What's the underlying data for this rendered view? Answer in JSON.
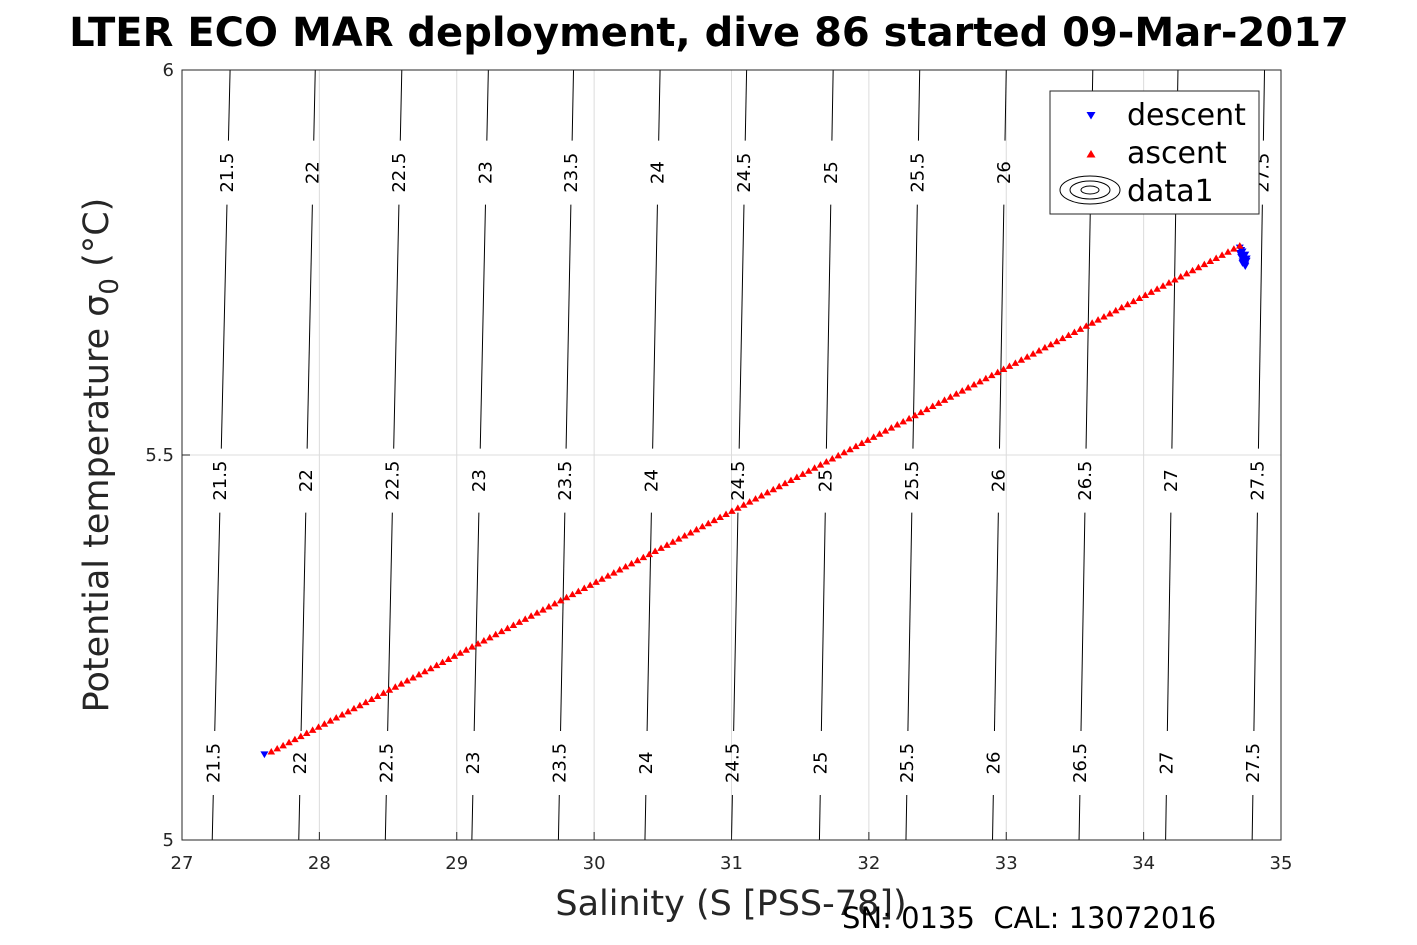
{
  "chart_data": {
    "type": "scatter",
    "title": "LTER ECO MAR deployment, dive 86 started 09-Mar-2017",
    "xlabel": "Salinity (S [PSS-78])",
    "ylabel": "Potential temperature σ",
    "ylabel_subscript": "0",
    "ylabel_unit": " (°C)",
    "xlim": [
      27,
      35
    ],
    "ylim": [
      5,
      6
    ],
    "xticks": [
      27,
      28,
      29,
      30,
      31,
      32,
      33,
      34,
      35
    ],
    "yticks": [
      5,
      5.5,
      6
    ],
    "xtick_labels": [
      "27",
      "28",
      "29",
      "30",
      "31",
      "32",
      "33",
      "34",
      "35"
    ],
    "ytick_labels": [
      "5",
      "5.5",
      "6"
    ],
    "grid": true,
    "legend_position": "top-right",
    "legend": [
      "descent",
      "ascent",
      "data1"
    ],
    "contours": {
      "levels": [
        21.5,
        22,
        22.5,
        23,
        23.5,
        24,
        24.5,
        25,
        25.5,
        26,
        26.5,
        27,
        27.5
      ],
      "labels": [
        "21.5",
        "22",
        "22.5",
        "23",
        "23.5",
        "24",
        "24.5",
        "25",
        "25.5",
        "26",
        "26.5",
        "27",
        "27.5"
      ],
      "x_at_bottom": [
        27.22,
        27.85,
        28.48,
        29.11,
        29.74,
        30.37,
        31.0,
        31.64,
        32.27,
        32.9,
        33.53,
        34.16,
        34.79
      ],
      "x_at_top": [
        27.35,
        27.97,
        28.6,
        29.23,
        29.85,
        30.48,
        31.11,
        31.74,
        32.37,
        33.0,
        33.63,
        34.25,
        34.88
      ]
    },
    "series": [
      {
        "name": "descent",
        "marker": "triangle-down",
        "color": "#0000ff",
        "x": [
          27.6,
          34.7,
          34.72,
          34.74,
          34.71,
          34.73,
          34.75,
          34.72,
          34.74,
          34.7,
          34.73,
          34.75,
          34.72,
          34.71,
          34.74
        ],
        "y": [
          5.111,
          5.769,
          5.764,
          5.76,
          5.757,
          5.754,
          5.752,
          5.749,
          5.747,
          5.762,
          5.758,
          5.755,
          5.751,
          5.766,
          5.745
        ]
      },
      {
        "name": "ascent",
        "marker": "triangle-up",
        "color": "#ff0000",
        "x_start": 27.65,
        "x_end": 34.7,
        "y_start": 5.115,
        "y_end": 5.772,
        "count": 165
      }
    ],
    "footer": "SN: 0135  CAL: 13072016"
  }
}
